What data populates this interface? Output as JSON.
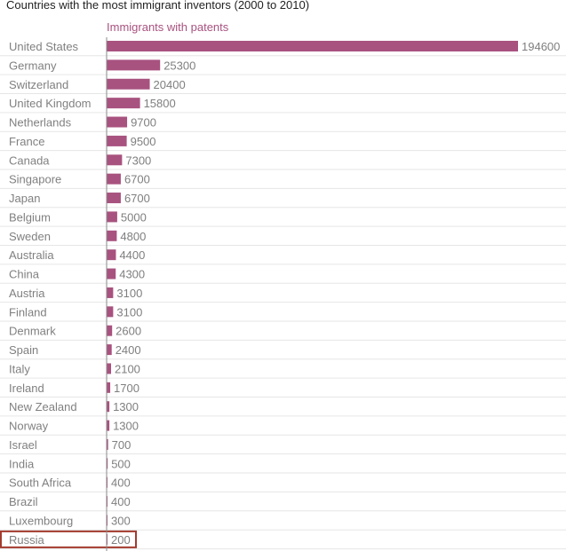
{
  "chart_data": {
    "type": "bar",
    "orientation": "horizontal",
    "title": "Countries with the most immigrant inventors (2000 to 2010)",
    "series": [
      {
        "name": "Immigrants with patents",
        "values": [
          194600,
          25300,
          20400,
          15800,
          9700,
          9500,
          7300,
          6700,
          6700,
          5000,
          4800,
          4400,
          4300,
          3100,
          3100,
          2600,
          2400,
          2100,
          1700,
          1300,
          1300,
          700,
          500,
          400,
          400,
          300,
          200
        ]
      }
    ],
    "categories": [
      "United States",
      "Germany",
      "Switzerland",
      "United Kingdom",
      "Netherlands",
      "France",
      "Canada",
      "Singapore",
      "Japan",
      "Belgium",
      "Sweden",
      "Australia",
      "China",
      "Austria",
      "Finland",
      "Denmark",
      "Spain",
      "Italy",
      "Ireland",
      "New Zealand",
      "Norway",
      "Israel",
      "India",
      "South Africa",
      "Brazil",
      "Luxembourg",
      "Russia"
    ],
    "xlim": [
      0,
      194600
    ],
    "grid": true,
    "highlighted_category": "Russia",
    "colors": {
      "bar": "#a8527f",
      "highlight_outline": "#a33a2e",
      "axis": "#8a8a8a",
      "grid": "#e6e6e6",
      "text": "#808080",
      "title": "#222222"
    }
  }
}
